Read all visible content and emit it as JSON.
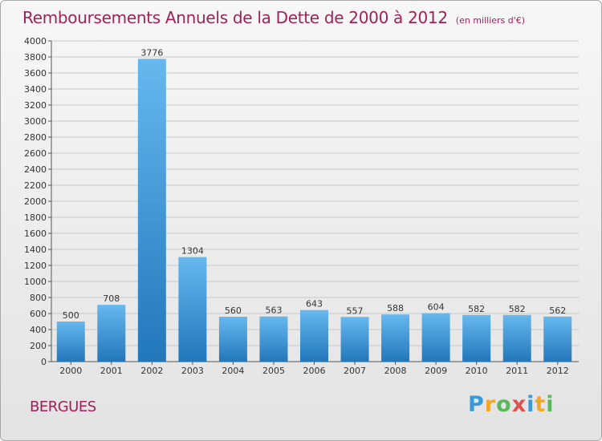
{
  "title": "Remboursements Annuels de la Dette de 2000 à 2012",
  "subtitle": "(en milliers d'€)",
  "commune": "BERGUES",
  "logo": {
    "text": "Proxiti",
    "letters": [
      "P",
      "r",
      "o",
      "x",
      "i",
      "t",
      "i"
    ],
    "colors": [
      "#3a9ad9",
      "#f5a623",
      "#5cb85c",
      "#d9534f",
      "#3a9ad9",
      "#f5a623",
      "#5cb85c"
    ]
  },
  "colors": {
    "bar_light": "#66b8ee",
    "bar_dark": "#2277bb",
    "grid": "#c8c8c8",
    "axis": "#555555",
    "title": "#a0215a"
  },
  "chart_data": {
    "type": "bar",
    "title": "Remboursements Annuels de la Dette de 2000 à 2012",
    "categories": [
      "2000",
      "2001",
      "2002",
      "2003",
      "2004",
      "2005",
      "2006",
      "2007",
      "2008",
      "2009",
      "2010",
      "2011",
      "2012"
    ],
    "values": [
      500,
      708,
      3776,
      1304,
      560,
      563,
      643,
      557,
      588,
      604,
      582,
      582,
      562
    ],
    "data_labels": [
      "500",
      "708",
      "3776",
      "1304",
      "560",
      "563",
      "643",
      "557",
      "588",
      "604",
      "582",
      "582",
      "562"
    ],
    "ylim": [
      0,
      4000
    ],
    "yticks": [
      0,
      200,
      400,
      600,
      800,
      1000,
      1200,
      1400,
      1600,
      1800,
      2000,
      2200,
      2400,
      2600,
      2800,
      3000,
      3200,
      3400,
      3600,
      3800,
      4000
    ],
    "ytick_labels": [
      "0",
      "200",
      "400",
      "600",
      "800",
      "1000",
      "1200",
      "1400",
      "1600",
      "1800",
      "2000",
      "2200",
      "2400",
      "2600",
      "2800",
      "3000",
      "3200",
      "3400",
      "3600",
      "3800",
      "4000"
    ],
    "grid": true,
    "legend": "none"
  }
}
